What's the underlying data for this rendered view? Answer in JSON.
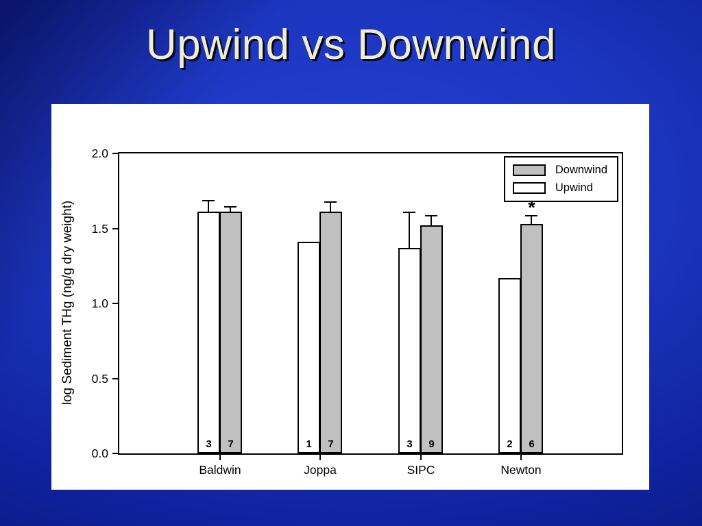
{
  "slide": {
    "title": "Upwind vs Downwind",
    "title_color": "#f2edcc",
    "background_colors": {
      "bright": "#2441d4",
      "mid": "#0f229e",
      "dark": "#081470"
    }
  },
  "chart_data": {
    "type": "bar",
    "title": "",
    "ylabel": "log Sediment THg (ng/g dry weight)",
    "xlabel": "",
    "ylim": [
      0.0,
      2.0
    ],
    "ytick_labels": [
      "0.0",
      "0.5",
      "1.0",
      "1.5",
      "2.0"
    ],
    "categories": [
      "Baldwin",
      "Joppa",
      "SIPC",
      "Newton"
    ],
    "grid": false,
    "legend_position": "top-right",
    "legend_order": [
      "Downwind",
      "Upwind"
    ],
    "series": [
      {
        "name": "Upwind",
        "fill": "#ffffff",
        "values": [
          1.61,
          1.41,
          1.37,
          1.17
        ],
        "errors": [
          0.08,
          0,
          0.24,
          0
        ],
        "counts": [
          3,
          1,
          3,
          2
        ],
        "significance": [
          "",
          "",
          "",
          ""
        ]
      },
      {
        "name": "Downwind",
        "fill": "#c0c0c0",
        "values": [
          1.61,
          1.61,
          1.52,
          1.53
        ],
        "errors": [
          0.04,
          0.07,
          0.07,
          0.06
        ],
        "counts": [
          7,
          7,
          9,
          6
        ],
        "significance": [
          "",
          "",
          "",
          "*"
        ]
      }
    ]
  }
}
